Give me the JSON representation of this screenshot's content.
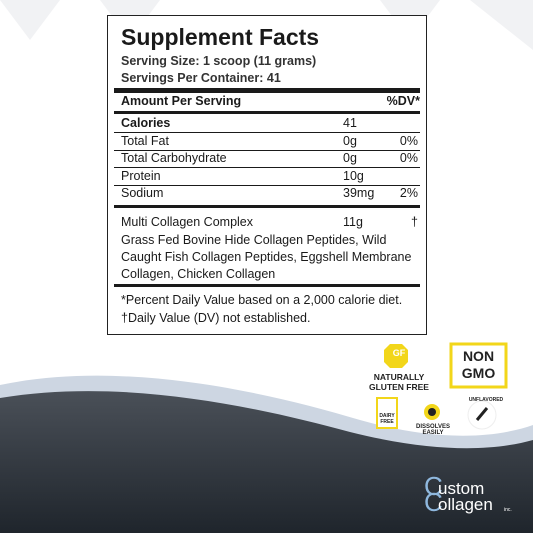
{
  "panel": {
    "title": "Supplement Facts",
    "serving_size": "Serving Size: 1 scoop (11 grams)",
    "servings_per_container": "Servings Per Container: 41",
    "header": {
      "label": "Amount Per Serving",
      "dv": "%DV*"
    },
    "rows": [
      {
        "name": "Calories",
        "amount": "41"
      },
      {
        "name": "Total Fat",
        "amount": "0g",
        "dv": "0%"
      },
      {
        "name": "Total Carbohydrate",
        "amount": "0g",
        "dv": "0%"
      },
      {
        "name": "Protein",
        "amount": "10g"
      },
      {
        "name": "Sodium",
        "amount": "39mg",
        "dv": "2%"
      }
    ],
    "blend": {
      "name": "Multi Collagen Complex",
      "amount": "11g",
      "dv": "†",
      "ingredients": "Grass Fed Bovine Hide Collagen Peptides, Wild Caught Fish Collagen Peptides, Eggshell Membrane Collagen, Chicken Collagen"
    },
    "footnotes": [
      "*Percent Daily Value based on a 2,000 calorie diet.",
      "†Daily Value (DV) not established."
    ]
  },
  "badges": {
    "gf": "GF",
    "gluten_free": "NATURALLY GLUTEN FREE",
    "non_gmo": "NON GMO",
    "dairy_free": "DAIRY FREE",
    "dissolves": "DISSOLVES EASILY",
    "unflavored": "UNFLAVORED"
  },
  "logo": {
    "line1": "ustom",
    "line2": "ollagen",
    "suffix": "inc."
  }
}
